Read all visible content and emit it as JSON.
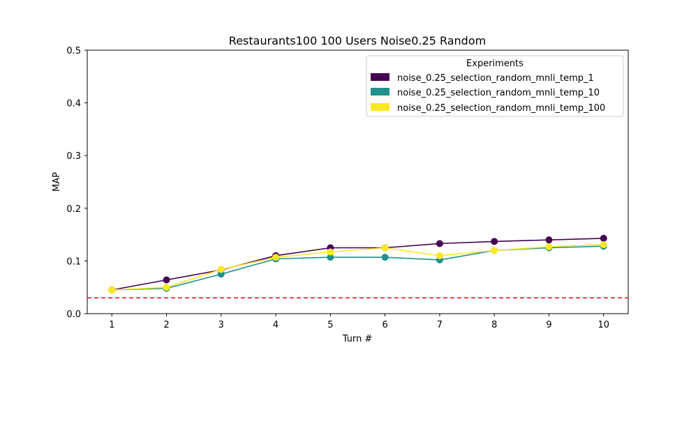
{
  "chart_data": {
    "type": "line",
    "title": "Restaurants100 100 Users Noise0.25 Random",
    "xlabel": "Turn #",
    "ylabel": "MAP",
    "x": [
      1,
      2,
      3,
      4,
      5,
      6,
      7,
      8,
      9,
      10
    ],
    "xticks": [
      "1",
      "2",
      "3",
      "4",
      "5",
      "6",
      "7",
      "8",
      "9",
      "10"
    ],
    "xlim": [
      0.55,
      10.45
    ],
    "ylim": [
      0,
      0.5
    ],
    "yticks": [
      "0.0",
      "0.1",
      "0.2",
      "0.3",
      "0.4",
      "0.5"
    ],
    "grid": false,
    "legend": {
      "title": "Experiments",
      "placement": "top-right"
    },
    "series": [
      {
        "name": "noise_0.25_selection_random_mnli_temp_1",
        "color": "#440154",
        "values": [
          0.045,
          0.064,
          0.083,
          0.11,
          0.125,
          0.125,
          0.133,
          0.137,
          0.14,
          0.143
        ]
      },
      {
        "name": "noise_0.25_selection_random_mnli_temp_10",
        "color": "#21918c",
        "values": [
          0.045,
          0.048,
          0.075,
          0.104,
          0.107,
          0.107,
          0.102,
          0.12,
          0.125,
          0.128
        ]
      },
      {
        "name": "noise_0.25_selection_random_mnli_temp_100",
        "color": "#fde725",
        "values": [
          0.045,
          0.05,
          0.084,
          0.107,
          0.117,
          0.125,
          0.11,
          0.12,
          0.127,
          0.131
        ]
      }
    ],
    "reference_line": {
      "y": 0.03,
      "color": "#e41a1c",
      "style": "dashed"
    }
  }
}
